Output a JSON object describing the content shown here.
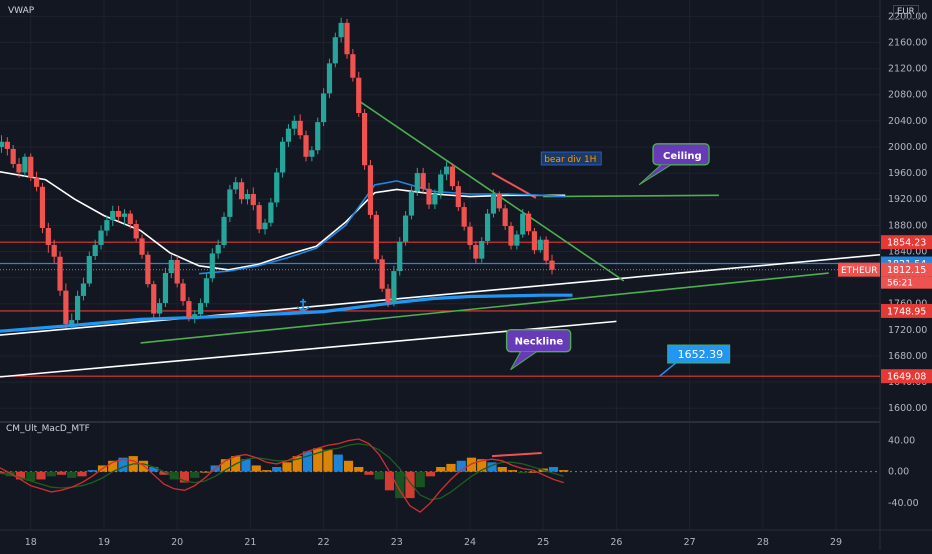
{
  "header": {
    "indicator": "VWAP",
    "currency": "EUR"
  },
  "indicator_pane": {
    "title": "CM_Ult_MacD_MTF"
  },
  "chart_data": {
    "type": "candlestick",
    "symbol_tag": "ETHEUR",
    "price_axis": {
      "ticks": [
        1600,
        1640,
        1680,
        1720,
        1760,
        1800,
        1840,
        1880,
        1920,
        1960,
        2000,
        2040,
        2080,
        2120,
        2160,
        2200
      ],
      "ylim": [
        1582,
        2225
      ]
    },
    "time_axis": {
      "ticks": [
        "18",
        "19",
        "20",
        "21",
        "22",
        "23",
        "24",
        "25",
        "26",
        "27",
        "28",
        "29"
      ],
      "xlim": [
        17.58,
        29.6
      ]
    },
    "price_labels": [
      {
        "text": "1854.23",
        "value": 1854.23,
        "color": "#e53935"
      },
      {
        "text": "1821.54",
        "value": 1821.54,
        "color": "#1e88e5"
      },
      {
        "text": "1812.15",
        "value": 1812.15,
        "color": "#ef5350"
      },
      {
        "text": "1748.95",
        "value": 1748.95,
        "color": "#e53935"
      },
      {
        "text": "1649.08",
        "value": 1649.08,
        "color": "#e53935"
      }
    ],
    "countdown": "56:21",
    "annotations": [
      {
        "text": "bear div 1H",
        "x": 25.0,
        "y": 1977
      },
      {
        "text": "Ceiling",
        "x": 26.5,
        "y": 1985
      },
      {
        "text": "Neckline",
        "x": 24.5,
        "y": 1705
      },
      {
        "text": "1652.39",
        "x": 26.7,
        "y": 1683
      }
    ],
    "candles": [
      [
        17.6,
        2000,
        2018,
        1991,
        2008
      ],
      [
        17.68,
        2008,
        2015,
        1987,
        1997
      ],
      [
        17.76,
        1997,
        2003,
        1968,
        1974
      ],
      [
        17.84,
        1974,
        1983,
        1953,
        1961
      ],
      [
        17.92,
        1961,
        1990,
        1955,
        1985
      ],
      [
        18.0,
        1985,
        1990,
        1948,
        1953
      ],
      [
        18.08,
        1953,
        1962,
        1932,
        1939
      ],
      [
        18.16,
        1939,
        1945,
        1868,
        1876
      ],
      [
        18.24,
        1876,
        1884,
        1838,
        1850
      ],
      [
        18.32,
        1850,
        1858,
        1822,
        1832
      ],
      [
        18.4,
        1832,
        1840,
        1772,
        1780
      ],
      [
        18.48,
        1780,
        1791,
        1723,
        1729
      ],
      [
        18.56,
        1729,
        1745,
        1722,
        1735
      ],
      [
        18.64,
        1735,
        1780,
        1730,
        1772
      ],
      [
        18.72,
        1772,
        1800,
        1765,
        1791
      ],
      [
        18.8,
        1791,
        1840,
        1786,
        1833
      ],
      [
        18.88,
        1833,
        1858,
        1827,
        1850
      ],
      [
        18.96,
        1850,
        1880,
        1843,
        1872
      ],
      [
        19.04,
        1872,
        1895,
        1864,
        1888
      ],
      [
        19.12,
        1888,
        1910,
        1879,
        1902
      ],
      [
        19.2,
        1902,
        1910,
        1886,
        1893
      ],
      [
        19.28,
        1893,
        1905,
        1880,
        1898
      ],
      [
        19.36,
        1898,
        1903,
        1875,
        1882
      ],
      [
        19.44,
        1882,
        1888,
        1855,
        1860
      ],
      [
        19.52,
        1860,
        1866,
        1829,
        1835
      ],
      [
        19.6,
        1835,
        1840,
        1785,
        1790
      ],
      [
        19.68,
        1790,
        1795,
        1738,
        1745
      ],
      [
        19.76,
        1745,
        1768,
        1740,
        1761
      ],
      [
        19.84,
        1761,
        1815,
        1755,
        1807
      ],
      [
        19.92,
        1807,
        1835,
        1799,
        1827
      ],
      [
        20.0,
        1827,
        1833,
        1785,
        1791
      ],
      [
        20.08,
        1791,
        1798,
        1757,
        1764
      ],
      [
        20.16,
        1764,
        1770,
        1733,
        1739
      ],
      [
        20.24,
        1739,
        1750,
        1730,
        1744
      ],
      [
        20.32,
        1744,
        1768,
        1738,
        1761
      ],
      [
        20.4,
        1761,
        1806,
        1755,
        1799
      ],
      [
        20.48,
        1799,
        1845,
        1793,
        1837
      ],
      [
        20.56,
        1837,
        1858,
        1829,
        1850
      ],
      [
        20.64,
        1850,
        1900,
        1845,
        1893
      ],
      [
        20.72,
        1893,
        1942,
        1885,
        1935
      ],
      [
        20.8,
        1935,
        1954,
        1928,
        1946
      ],
      [
        20.88,
        1946,
        1952,
        1913,
        1920
      ],
      [
        20.96,
        1920,
        1935,
        1912,
        1928
      ],
      [
        21.04,
        1928,
        1938,
        1903,
        1911
      ],
      [
        21.12,
        1911,
        1916,
        1868,
        1874
      ],
      [
        21.2,
        1874,
        1890,
        1866,
        1884
      ],
      [
        21.28,
        1884,
        1922,
        1878,
        1915
      ],
      [
        21.36,
        1915,
        1968,
        1908,
        1961
      ],
      [
        21.44,
        1961,
        2015,
        1953,
        2008
      ],
      [
        21.52,
        2008,
        2035,
        2000,
        2028
      ],
      [
        21.6,
        2028,
        2048,
        2018,
        2040
      ],
      [
        21.68,
        2040,
        2050,
        2012,
        2018
      ],
      [
        21.76,
        2018,
        2025,
        1978,
        1985
      ],
      [
        21.84,
        1985,
        2001,
        1978,
        1995
      ],
      [
        21.92,
        1995,
        2045,
        1989,
        2038
      ],
      [
        22.0,
        2038,
        2090,
        2032,
        2082
      ],
      [
        22.08,
        2082,
        2135,
        2075,
        2128
      ],
      [
        22.16,
        2128,
        2175,
        2122,
        2168
      ],
      [
        22.24,
        2168,
        2198,
        2160,
        2190
      ],
      [
        22.32,
        2190,
        2196,
        2135,
        2142
      ],
      [
        22.4,
        2142,
        2150,
        2100,
        2106
      ],
      [
        22.48,
        2106,
        2115,
        2046,
        2052
      ],
      [
        22.56,
        2052,
        2058,
        1965,
        1972
      ],
      [
        22.64,
        1972,
        1980,
        1890,
        1896
      ],
      [
        22.72,
        1896,
        1902,
        1822,
        1828
      ],
      [
        22.8,
        1828,
        1834,
        1778,
        1783
      ],
      [
        22.88,
        1783,
        1790,
        1755,
        1762
      ],
      [
        22.96,
        1762,
        1818,
        1756,
        1810
      ],
      [
        23.04,
        1810,
        1862,
        1803,
        1855
      ],
      [
        23.12,
        1855,
        1902,
        1849,
        1895
      ],
      [
        23.2,
        1895,
        1940,
        1889,
        1932
      ],
      [
        23.28,
        1932,
        1968,
        1925,
        1960
      ],
      [
        23.36,
        1960,
        1968,
        1930,
        1936
      ],
      [
        23.44,
        1936,
        1945,
        1905,
        1912
      ],
      [
        23.52,
        1912,
        1935,
        1905,
        1928
      ],
      [
        23.6,
        1928,
        1965,
        1921,
        1958
      ],
      [
        23.68,
        1958,
        1978,
        1949,
        1970
      ],
      [
        23.76,
        1970,
        1975,
        1934,
        1940
      ],
      [
        23.84,
        1940,
        1948,
        1902,
        1908
      ],
      [
        23.92,
        1908,
        1915,
        1872,
        1878
      ],
      [
        24.0,
        1878,
        1885,
        1843,
        1850
      ],
      [
        24.08,
        1850,
        1856,
        1822,
        1829
      ],
      [
        24.16,
        1829,
        1862,
        1823,
        1856
      ],
      [
        24.24,
        1856,
        1905,
        1850,
        1898
      ],
      [
        24.32,
        1898,
        1935,
        1892,
        1928
      ],
      [
        24.4,
        1928,
        1932,
        1901,
        1906
      ],
      [
        24.48,
        1906,
        1912,
        1873,
        1879
      ],
      [
        24.56,
        1879,
        1885,
        1843,
        1849
      ],
      [
        24.64,
        1849,
        1872,
        1843,
        1866
      ],
      [
        24.72,
        1866,
        1905,
        1861,
        1898
      ],
      [
        24.8,
        1898,
        1902,
        1865,
        1871
      ],
      [
        24.88,
        1871,
        1876,
        1836,
        1842
      ],
      [
        24.96,
        1842,
        1863,
        1838,
        1858
      ],
      [
        25.04,
        1858,
        1863,
        1820,
        1826
      ],
      [
        25.12,
        1826,
        1835,
        1805,
        1812
      ]
    ],
    "series": [
      {
        "name": "VWAP",
        "color": "#ffffff",
        "points": [
          [
            17.58,
            1962
          ],
          [
            18.2,
            1950
          ],
          [
            18.6,
            1920
          ],
          [
            19.0,
            1895
          ],
          [
            19.5,
            1872
          ],
          [
            19.9,
            1838
          ],
          [
            20.3,
            1818
          ],
          [
            20.7,
            1812
          ],
          [
            21.1,
            1820
          ],
          [
            21.5,
            1835
          ],
          [
            21.9,
            1848
          ],
          [
            22.3,
            1885
          ],
          [
            22.7,
            1930
          ],
          [
            23.0,
            1935
          ],
          [
            23.5,
            1928
          ],
          [
            24.0,
            1924
          ],
          [
            24.5,
            1926
          ],
          [
            25.0,
            1926
          ],
          [
            25.3,
            1926
          ]
        ]
      },
      {
        "name": "",
        "color": "#1e88e5",
        "points": [
          [
            20.3,
            1806
          ],
          [
            20.7,
            1810
          ],
          [
            21.1,
            1818
          ],
          [
            21.5,
            1830
          ],
          [
            21.9,
            1845
          ],
          [
            22.3,
            1880
          ],
          [
            22.7,
            1942
          ],
          [
            23.0,
            1948
          ],
          [
            23.5,
            1932
          ],
          [
            24.0,
            1928
          ],
          [
            24.5,
            1928
          ],
          [
            25.0,
            1926
          ],
          [
            25.3,
            1924
          ]
        ]
      },
      {
        "name": "",
        "color": "#2196f3",
        "points": [
          [
            17.58,
            1718
          ],
          [
            18.5,
            1726
          ],
          [
            19.5,
            1736
          ],
          [
            20.5,
            1740
          ],
          [
            21.5,
            1745
          ],
          [
            22.0,
            1748
          ],
          [
            22.5,
            1755
          ],
          [
            23.0,
            1762
          ],
          [
            23.5,
            1768
          ],
          [
            24.0,
            1771
          ],
          [
            24.5,
            1772
          ],
          [
            25.0,
            1773
          ],
          [
            25.4,
            1773
          ]
        ]
      }
    ],
    "levels": [
      {
        "value": 1854.23,
        "color": "#e53935"
      },
      {
        "value": 1821.54,
        "color": "#1e88e5"
      },
      {
        "value": 1812.15,
        "color": "#787b86"
      },
      {
        "value": 1748.95,
        "color": "#e53935"
      },
      {
        "value": 1649.08,
        "color": "#e53935"
      }
    ],
    "trendlines": [
      {
        "color": "#ffffff",
        "points": [
          [
            17.58,
            1712
          ],
          [
            29.6,
            1835
          ]
        ]
      },
      {
        "color": "#ffffff",
        "points": [
          [
            17.58,
            1648
          ],
          [
            26.0,
            1733
          ]
        ]
      },
      {
        "color": "#4caf50",
        "points": [
          [
            19.5,
            1700
          ],
          [
            28.9,
            1807
          ]
        ]
      },
      {
        "color": "#4caf50",
        "points": [
          [
            22.45,
            2073
          ],
          [
            26.1,
            1795
          ]
        ]
      },
      {
        "color": "#4caf50",
        "points": [
          [
            25.0,
            1924
          ],
          [
            27.4,
            1926
          ]
        ]
      },
      {
        "color": "#ef5350",
        "points": [
          [
            24.3,
            1960
          ],
          [
            24.9,
            1922
          ]
        ]
      }
    ],
    "macd": {
      "ticks": [
        40.0,
        0.0,
        -40.0
      ],
      "ylim": [
        -75,
        60
      ],
      "x": [
        17.58,
        17.72,
        17.86,
        18.0,
        18.14,
        18.28,
        18.42,
        18.56,
        18.7,
        18.84,
        18.98,
        19.12,
        19.26,
        19.4,
        19.54,
        19.68,
        19.82,
        19.96,
        20.1,
        20.24,
        20.38,
        20.52,
        20.66,
        20.8,
        20.94,
        21.08,
        21.22,
        21.36,
        21.5,
        21.64,
        21.78,
        21.92,
        22.06,
        22.2,
        22.34,
        22.48,
        22.62,
        22.76,
        22.9,
        23.04,
        23.18,
        23.32,
        23.46,
        23.6,
        23.74,
        23.88,
        24.02,
        24.16,
        24.3,
        24.44,
        24.58,
        24.72,
        24.86,
        25.0,
        25.14,
        25.28
      ],
      "histogram": [
        -2,
        -6,
        -10,
        -12,
        -10,
        -6,
        -4,
        -8,
        -6,
        2,
        8,
        14,
        18,
        20,
        14,
        6,
        -4,
        -10,
        -14,
        -8,
        0,
        8,
        16,
        20,
        16,
        8,
        2,
        6,
        12,
        20,
        26,
        30,
        28,
        22,
        14,
        6,
        -4,
        -10,
        -24,
        -34,
        -34,
        -20,
        -6,
        6,
        10,
        14,
        18,
        16,
        12,
        6,
        2,
        -2,
        0,
        4,
        6,
        2
      ],
      "macd_line": [
        5,
        -2,
        -10,
        -18,
        -22,
        -26,
        -24,
        -20,
        -14,
        -6,
        4,
        12,
        16,
        14,
        8,
        -4,
        -16,
        -22,
        -24,
        -18,
        -8,
        4,
        14,
        20,
        22,
        18,
        12,
        10,
        14,
        20,
        26,
        30,
        34,
        36,
        40,
        42,
        36,
        22,
        0,
        -24,
        -44,
        -52,
        -40,
        -24,
        -10,
        2,
        10,
        14,
        16,
        14,
        8,
        4,
        2,
        -4,
        -10,
        -14
      ],
      "signal_line": [
        -2,
        -4,
        -8,
        -12,
        -16,
        -20,
        -21,
        -20,
        -18,
        -14,
        -8,
        0,
        6,
        10,
        10,
        6,
        0,
        -6,
        -12,
        -14,
        -12,
        -6,
        2,
        10,
        16,
        18,
        16,
        14,
        14,
        16,
        20,
        24,
        28,
        30,
        34,
        36,
        34,
        28,
        18,
        4,
        -14,
        -30,
        -36,
        -34,
        -26,
        -16,
        -6,
        2,
        8,
        12,
        12,
        10,
        6,
        2,
        -2,
        -6
      ]
    }
  }
}
